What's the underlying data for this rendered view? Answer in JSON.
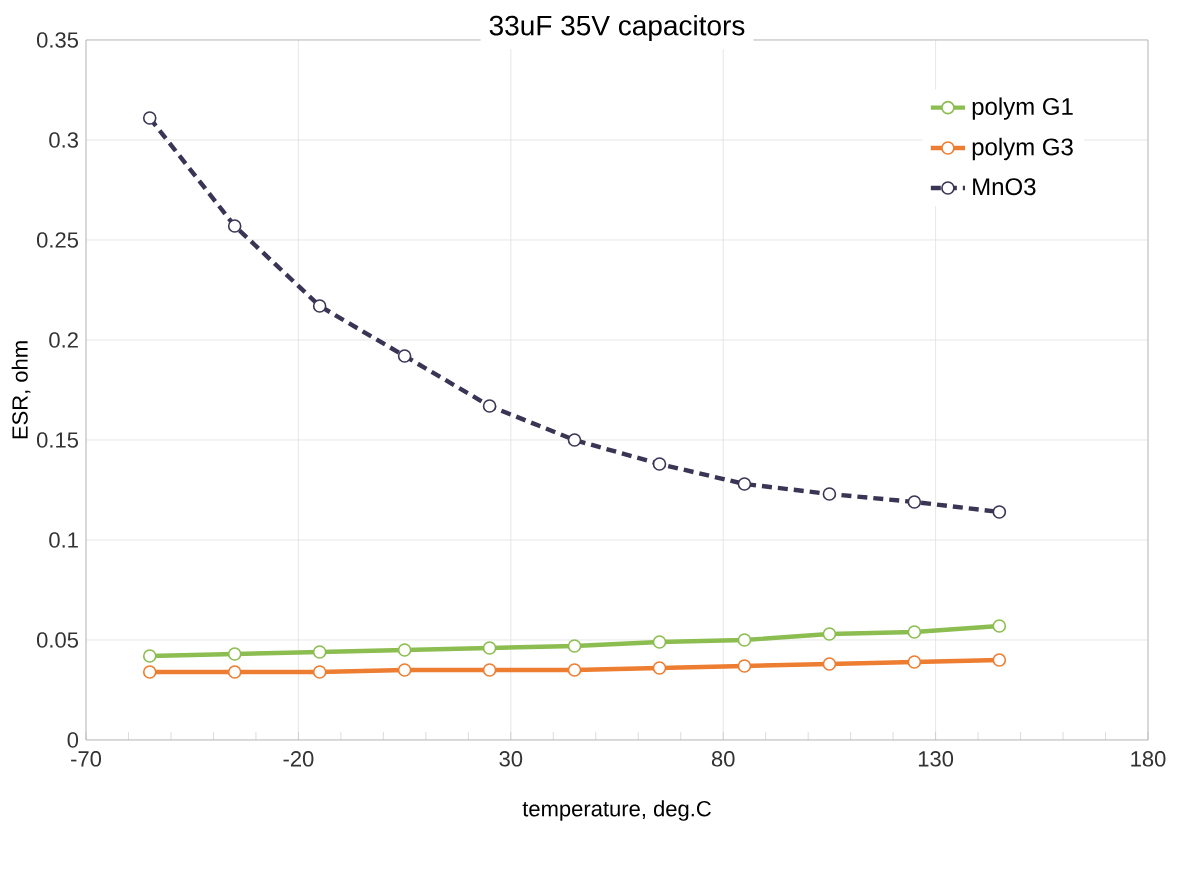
{
  "chart_data": {
    "type": "line",
    "title": "33uF 35V capacitors",
    "xlabel": "temperature, deg.C",
    "ylabel": "ESR, ohm",
    "x": [
      -55,
      -35,
      -15,
      5,
      25,
      45,
      65,
      85,
      105,
      125,
      145
    ],
    "series": [
      {
        "name": "polym G1",
        "color": "#8cbd50",
        "line_style": "solid",
        "values": [
          0.042,
          0.043,
          0.044,
          0.045,
          0.046,
          0.047,
          0.049,
          0.05,
          0.053,
          0.054,
          0.057
        ]
      },
      {
        "name": "polym G3",
        "color": "#ed7d31",
        "line_style": "solid",
        "values": [
          0.034,
          0.034,
          0.034,
          0.035,
          0.035,
          0.035,
          0.036,
          0.037,
          0.038,
          0.039,
          0.04
        ]
      },
      {
        "name": "MnO3",
        "color": "#3b3555",
        "line_style": "dashed",
        "values": [
          0.311,
          0.257,
          0.217,
          0.192,
          0.167,
          0.15,
          0.138,
          0.128,
          0.123,
          0.119,
          0.114
        ]
      }
    ],
    "xlim": [
      -70,
      180
    ],
    "xticks": [
      -70,
      -20,
      30,
      80,
      130,
      180
    ],
    "ylim": [
      0,
      0.35
    ],
    "yticks": [
      0,
      0.05,
      0.1,
      0.15,
      0.2,
      0.25,
      0.3,
      0.35
    ],
    "grid": true,
    "legend": "top right",
    "marker": "circle"
  }
}
